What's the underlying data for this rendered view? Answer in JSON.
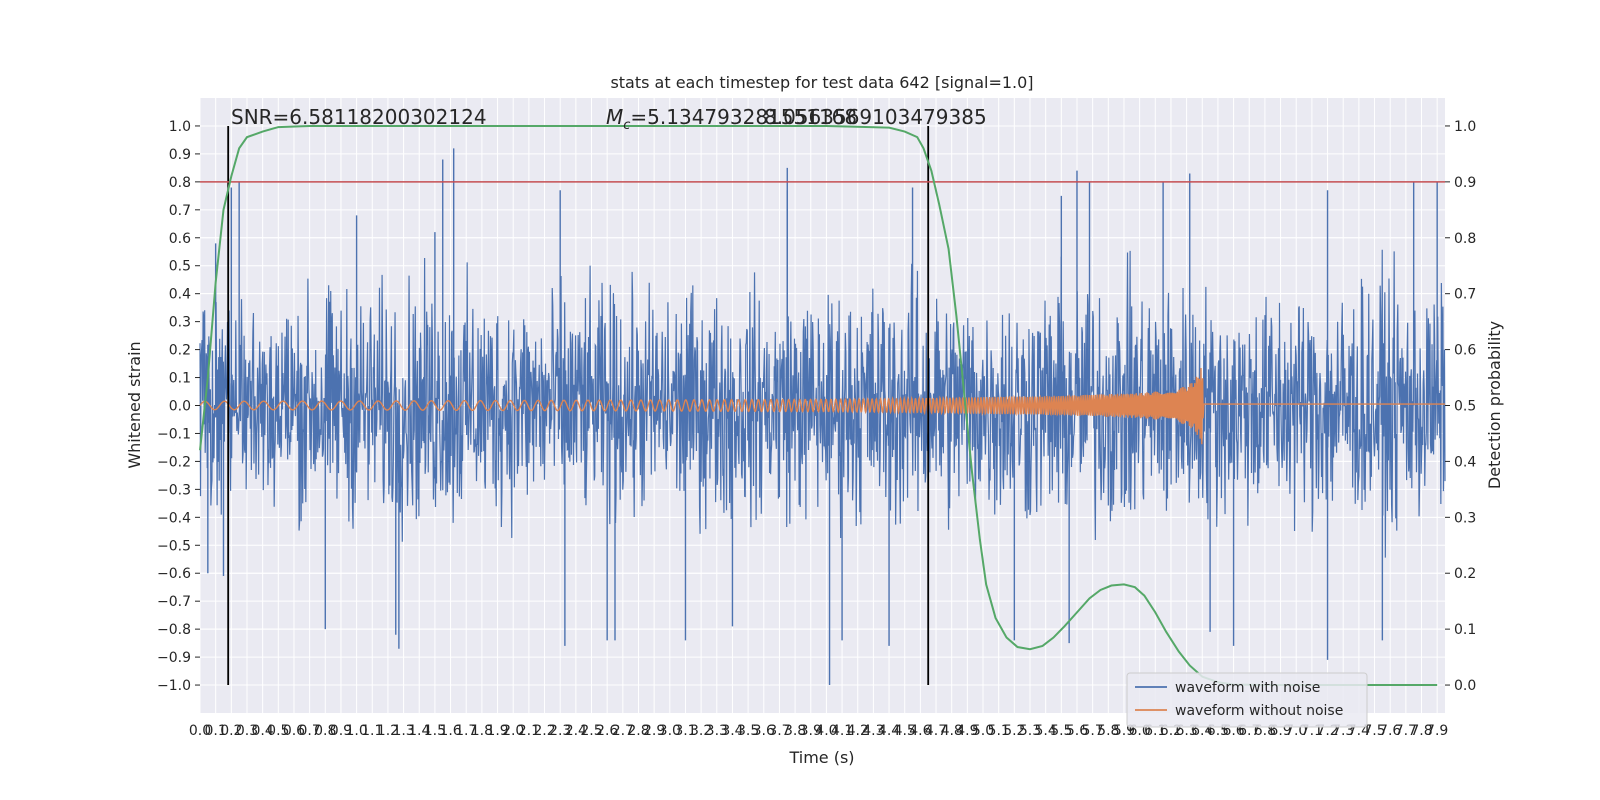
{
  "chart_data": {
    "type": "line",
    "title": "stats at each timestep for test data 642 [signal=1.0]",
    "xlabel": "Time (s)",
    "ylabel": "Whitened strain",
    "y2label": "Detection probability",
    "xlim": [
      0.0,
      7.95
    ],
    "ylim": [
      -1.1,
      1.1
    ],
    "y2lim": [
      -0.05,
      1.05
    ],
    "xticks": [
      "0.0",
      "0.1",
      "0.2",
      "0.3",
      "0.4",
      "0.5",
      "0.6",
      "0.7",
      "0.8",
      "0.9",
      "1.0",
      "1.1",
      "1.2",
      "1.3",
      "1.4",
      "1.5",
      "1.6",
      "1.7",
      "1.8",
      "1.9",
      "2.0",
      "2.1",
      "2.2",
      "2.3",
      "2.4",
      "2.5",
      "2.6",
      "2.7",
      "2.8",
      "2.9",
      "3.0",
      "3.1",
      "3.2",
      "3.3",
      "3.4",
      "3.5",
      "3.6",
      "3.7",
      "3.8",
      "3.9",
      "4.0",
      "4.1",
      "4.2",
      "4.3",
      "4.4",
      "4.5",
      "4.6",
      "4.7",
      "4.8",
      "4.9",
      "5.0",
      "5.1",
      "5.2",
      "5.3",
      "5.4",
      "5.5",
      "5.6",
      "5.7",
      "5.8",
      "5.9",
      "6.0",
      "6.1",
      "6.2",
      "6.3",
      "6.4",
      "6.5",
      "6.6",
      "6.7",
      "6.8",
      "6.9",
      "7.0",
      "7.1",
      "7.2",
      "7.3",
      "7.4",
      "7.5",
      "7.6",
      "7.7",
      "7.8",
      "7.9"
    ],
    "yticks": [
      "−1.0",
      "−0.9",
      "−0.8",
      "−0.7",
      "−0.6",
      "−0.5",
      "−0.4",
      "−0.3",
      "−0.2",
      "−0.1",
      "0.0",
      "0.1",
      "0.2",
      "0.3",
      "0.4",
      "0.5",
      "0.6",
      "0.7",
      "0.8",
      "0.9",
      "1.0"
    ],
    "y2ticks": [
      "0.0",
      "0.1",
      "0.2",
      "0.3",
      "0.4",
      "0.5",
      "0.6",
      "0.7",
      "0.8",
      "0.9",
      "1.0"
    ],
    "grid": true,
    "legend_position": "lower-right",
    "annotations": {
      "snr": "SNR=6.58118200302124",
      "mc_symbol": "M",
      "mc_sub": "c",
      "mc_value": "=5.134793281551168",
      "mc_overlap": "8.0563569103479385"
    },
    "threshold": 0.9,
    "vlines_x": [
      0.18,
      4.65
    ],
    "noise": {
      "name": "waveform with noise",
      "envelope": [
        [
          0.0,
          0.45
        ],
        [
          0.5,
          0.55
        ],
        [
          1.0,
          0.55
        ],
        [
          1.5,
          0.6
        ],
        [
          2.0,
          0.55
        ],
        [
          2.5,
          0.55
        ],
        [
          3.0,
          0.55
        ],
        [
          3.5,
          0.55
        ],
        [
          4.0,
          0.55
        ],
        [
          4.5,
          0.6
        ],
        [
          5.0,
          0.55
        ],
        [
          5.5,
          0.6
        ],
        [
          6.0,
          0.6
        ],
        [
          6.5,
          0.55
        ],
        [
          7.0,
          0.55
        ],
        [
          7.5,
          0.6
        ],
        [
          7.95,
          0.55
        ]
      ],
      "peaks": [
        [
          0.1,
          0.58
        ],
        [
          0.2,
          0.78
        ],
        [
          0.25,
          0.8
        ],
        [
          1.0,
          0.68
        ],
        [
          1.5,
          0.62
        ],
        [
          1.55,
          0.88
        ],
        [
          1.62,
          0.92
        ],
        [
          2.3,
          0.77
        ],
        [
          3.75,
          0.77
        ],
        [
          3.75,
          0.85
        ],
        [
          4.55,
          0.78
        ],
        [
          5.5,
          0.75
        ],
        [
          5.6,
          0.84
        ],
        [
          5.68,
          0.8
        ],
        [
          6.15,
          0.8
        ],
        [
          6.32,
          0.83
        ],
        [
          7.2,
          0.77
        ],
        [
          7.75,
          0.8
        ],
        [
          7.9,
          0.8
        ],
        [
          0.05,
          -0.6
        ],
        [
          0.15,
          -0.61
        ],
        [
          0.8,
          -0.8
        ],
        [
          1.25,
          -0.82
        ],
        [
          1.27,
          -0.87
        ],
        [
          2.33,
          -0.86
        ],
        [
          2.6,
          -0.84
        ],
        [
          2.65,
          -0.84
        ],
        [
          3.1,
          -0.84
        ],
        [
          3.4,
          -0.79
        ],
        [
          4.02,
          -1.0
        ],
        [
          4.1,
          -0.84
        ],
        [
          4.4,
          -0.86
        ],
        [
          5.2,
          -0.84
        ],
        [
          5.55,
          -0.85
        ],
        [
          6.45,
          -0.81
        ],
        [
          6.6,
          -0.86
        ],
        [
          7.2,
          -0.91
        ],
        [
          7.55,
          -0.84
        ]
      ]
    },
    "clean": {
      "name": "waveform without noise",
      "envelope": [
        [
          0.0,
          0.015
        ],
        [
          1.0,
          0.016
        ],
        [
          2.0,
          0.018
        ],
        [
          3.0,
          0.02
        ],
        [
          4.0,
          0.022
        ],
        [
          4.5,
          0.025
        ],
        [
          5.0,
          0.03
        ],
        [
          5.5,
          0.035
        ],
        [
          6.0,
          0.045
        ],
        [
          6.2,
          0.055
        ],
        [
          6.3,
          0.07
        ],
        [
          6.35,
          0.09
        ],
        [
          6.38,
          0.12
        ],
        [
          6.4,
          0.145
        ],
        [
          6.41,
          0.005
        ],
        [
          7.95,
          0.005
        ]
      ],
      "end_x": 6.41
    },
    "probability": {
      "name": "Detection probability",
      "points": [
        [
          0.0,
          0.42
        ],
        [
          0.05,
          0.55
        ],
        [
          0.1,
          0.72
        ],
        [
          0.15,
          0.85
        ],
        [
          0.2,
          0.91
        ],
        [
          0.25,
          0.96
        ],
        [
          0.3,
          0.98
        ],
        [
          0.4,
          0.99
        ],
        [
          0.5,
          0.998
        ],
        [
          0.7,
          1.0
        ],
        [
          1.0,
          1.0
        ],
        [
          2.0,
          1.0
        ],
        [
          3.0,
          1.0
        ],
        [
          4.0,
          1.0
        ],
        [
          4.4,
          0.997
        ],
        [
          4.5,
          0.99
        ],
        [
          4.58,
          0.98
        ],
        [
          4.62,
          0.96
        ],
        [
          4.67,
          0.92
        ],
        [
          4.72,
          0.86
        ],
        [
          4.78,
          0.78
        ],
        [
          4.83,
          0.66
        ],
        [
          4.88,
          0.52
        ],
        [
          4.93,
          0.38
        ],
        [
          4.98,
          0.26
        ],
        [
          5.02,
          0.18
        ],
        [
          5.08,
          0.12
        ],
        [
          5.15,
          0.085
        ],
        [
          5.22,
          0.068
        ],
        [
          5.3,
          0.064
        ],
        [
          5.38,
          0.07
        ],
        [
          5.45,
          0.085
        ],
        [
          5.52,
          0.105
        ],
        [
          5.6,
          0.13
        ],
        [
          5.68,
          0.155
        ],
        [
          5.75,
          0.17
        ],
        [
          5.82,
          0.178
        ],
        [
          5.9,
          0.18
        ],
        [
          5.97,
          0.175
        ],
        [
          6.03,
          0.16
        ],
        [
          6.1,
          0.13
        ],
        [
          6.17,
          0.095
        ],
        [
          6.25,
          0.06
        ],
        [
          6.32,
          0.035
        ],
        [
          6.4,
          0.015
        ],
        [
          6.5,
          0.005
        ],
        [
          6.6,
          0.001
        ],
        [
          6.8,
          0.0
        ],
        [
          7.5,
          0.0
        ],
        [
          7.9,
          0.0
        ]
      ]
    },
    "colors": {
      "noise": "#4c72b0",
      "clean": "#dd8452",
      "probability": "#55a868",
      "threshold": "#c44e52",
      "vline": "#000000",
      "plot_bg": "#eaeaf2",
      "grid": "#ffffff"
    }
  }
}
